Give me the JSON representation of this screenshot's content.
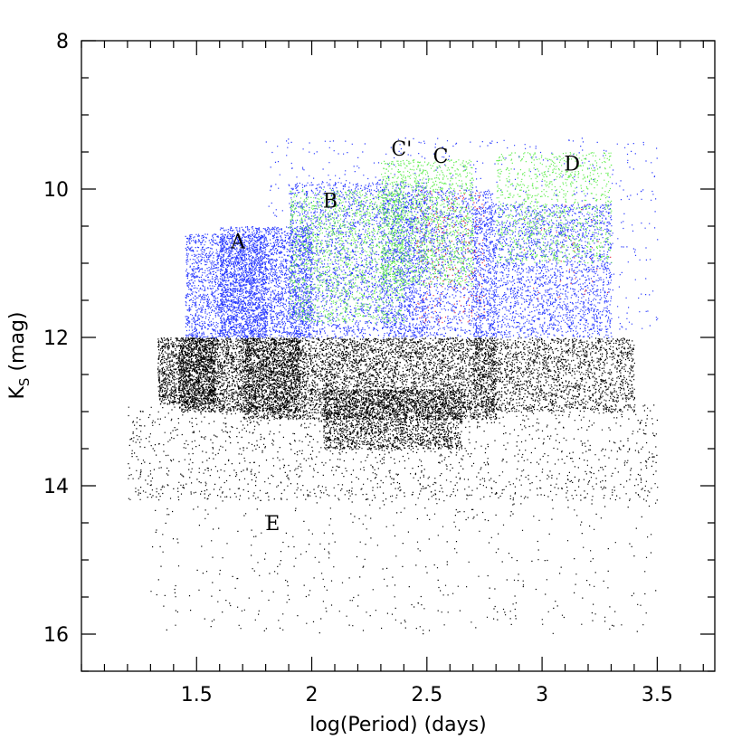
{
  "chart_data": {
    "type": "scatter",
    "title": "",
    "xlabel": "log(Period)  (days)",
    "ylabel_main": "K",
    "ylabel_sub": "S",
    "ylabel_unit": " (mag)",
    "xlim": [
      1.0,
      3.75
    ],
    "ylim": [
      16.5,
      8.0
    ],
    "y_inverted": true,
    "x_major_ticks": [
      1.5,
      2,
      2.5,
      3,
      3.5
    ],
    "x_tick_labels": [
      "1.5",
      "2",
      "2.5",
      "3",
      "3.5"
    ],
    "x_minor_step": 0.1,
    "y_major_ticks": [
      8,
      10,
      12,
      14,
      16
    ],
    "y_tick_labels": [
      "8",
      "10",
      "12",
      "14",
      "16"
    ],
    "y_minor_step": 0.5,
    "grid": false,
    "annotations": [
      {
        "text": "A",
        "x": 1.68,
        "y": 10.7
      },
      {
        "text": "B",
        "x": 2.08,
        "y": 10.15
      },
      {
        "text": "C'",
        "x": 2.39,
        "y": 9.45
      },
      {
        "text": "C",
        "x": 2.56,
        "y": 9.55
      },
      {
        "text": "D",
        "x": 3.13,
        "y": 9.65
      },
      {
        "text": "E",
        "x": 1.83,
        "y": 14.5
      }
    ],
    "series": [
      {
        "color": "#000000",
        "description_free": true,
        "clusters": [
          {
            "x": [
              1.33,
              1.58
            ],
            "y": [
              12.0,
              12.9
            ],
            "n": 1400
          },
          {
            "x": [
              1.42,
              1.95
            ],
            "y": [
              12.0,
              13.0
            ],
            "n": 2800
          },
          {
            "x": [
              1.7,
              2.8
            ],
            "y": [
              12.0,
              13.1
            ],
            "n": 6000
          },
          {
            "x": [
              2.05,
              2.65
            ],
            "y": [
              12.7,
              13.5
            ],
            "n": 2200
          },
          {
            "x": [
              2.7,
              3.4
            ],
            "y": [
              12.0,
              13.0
            ],
            "n": 2000
          },
          {
            "x": [
              1.2,
              3.5
            ],
            "y": [
              12.9,
              14.2
            ],
            "n": 1500
          },
          {
            "x": [
              1.3,
              3.5
            ],
            "y": [
              14.0,
              16.0
            ],
            "n": 500
          }
        ]
      },
      {
        "color": "#2a3bff",
        "description_free": true,
        "clusters": [
          {
            "x": [
              1.45,
              1.8
            ],
            "y": [
              10.6,
              12.0
            ],
            "n": 1800
          },
          {
            "x": [
              1.6,
              2.0
            ],
            "y": [
              10.5,
              12.0
            ],
            "n": 2600
          },
          {
            "x": [
              1.9,
              2.5
            ],
            "y": [
              9.9,
              12.0
            ],
            "n": 2400
          },
          {
            "x": [
              2.3,
              2.8
            ],
            "y": [
              10.0,
              12.0
            ],
            "n": 1800
          },
          {
            "x": [
              2.7,
              3.3
            ],
            "y": [
              10.2,
              12.0
            ],
            "n": 2400
          },
          {
            "x": [
              1.8,
              3.5
            ],
            "y": [
              9.3,
              11.9
            ],
            "n": 900
          }
        ]
      },
      {
        "color": "#66ee55",
        "description_free": true,
        "clusters": [
          {
            "x": [
              1.9,
              2.4
            ],
            "y": [
              10.0,
              11.8
            ],
            "n": 1500
          },
          {
            "x": [
              2.3,
              2.7
            ],
            "y": [
              9.6,
              11.3
            ],
            "n": 1500
          },
          {
            "x": [
              2.8,
              3.3
            ],
            "y": [
              9.5,
              11.0
            ],
            "n": 1000
          }
        ]
      },
      {
        "color": "#e8334a",
        "description_free": true,
        "clusters": [
          {
            "x": [
              2.45,
              2.75
            ],
            "y": [
              10.0,
              11.8
            ],
            "n": 220
          },
          {
            "x": [
              2.9,
              3.3
            ],
            "y": [
              10.2,
              11.5
            ],
            "n": 40
          }
        ]
      }
    ]
  }
}
